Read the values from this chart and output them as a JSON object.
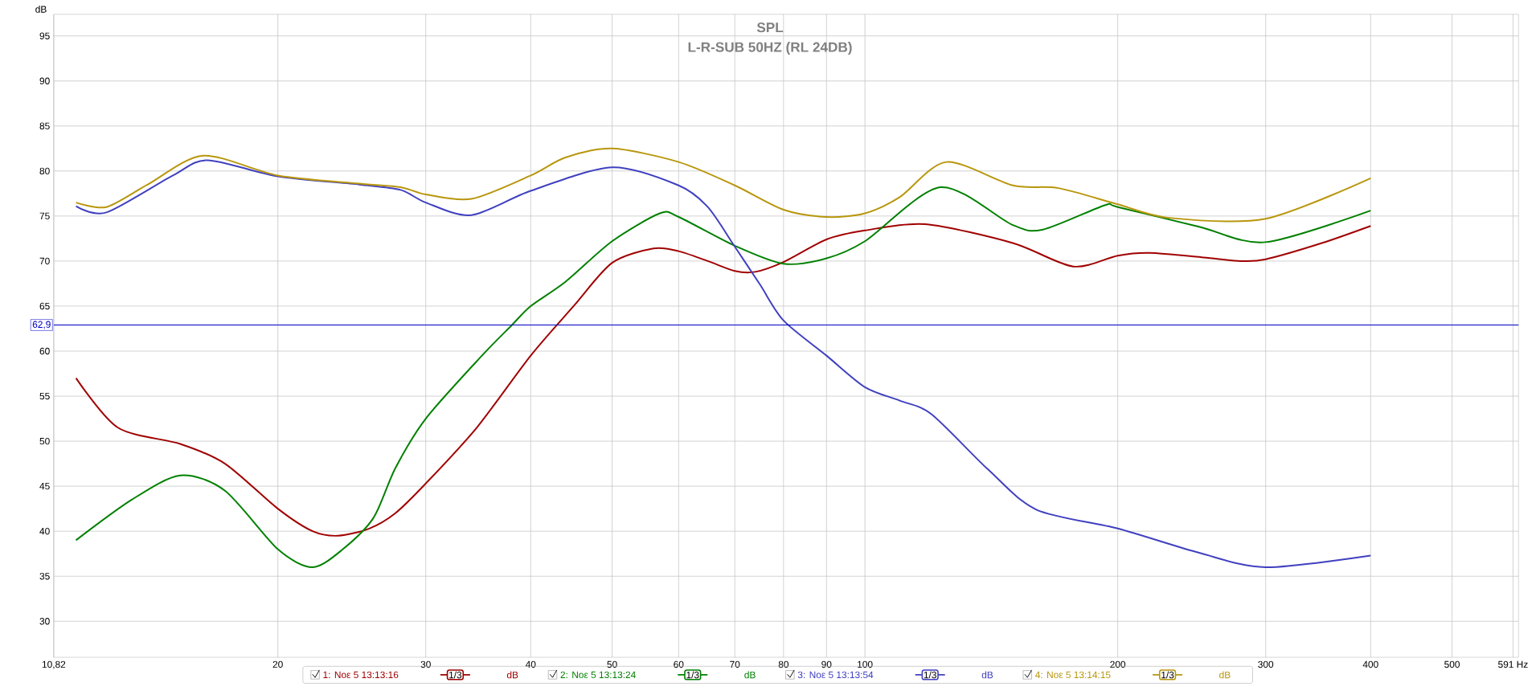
{
  "chart_data": {
    "type": "line",
    "title": "SPL",
    "subtitle": "L-R-SUB 50HZ (RL 24DB)",
    "ylabel": "dB",
    "xlim": [
      10.82,
      600
    ],
    "ylim": [
      26,
      97.4
    ],
    "log": "x",
    "grid": true,
    "legend": "bottom",
    "xticks": [
      {
        "value": 10.82,
        "label": "10,82"
      },
      20,
      30,
      40,
      50,
      60,
      70,
      80,
      90,
      100,
      200,
      300,
      400,
      500,
      {
        "value": 591,
        "label": "591 Hz"
      }
    ],
    "yticks": [
      30,
      35,
      40,
      45,
      50,
      55,
      60,
      65,
      70,
      75,
      80,
      85,
      90,
      95
    ],
    "ref_lines": [
      {
        "axis": "y",
        "value": 62.9,
        "label": "62,9",
        "color": "#0000c8"
      }
    ],
    "annotations": [
      "1/3",
      "dB"
    ],
    "series": [
      {
        "name": "1: Noε 5 13:13:16",
        "color": "#a00000",
        "x": [
          11.5,
          12.9,
          15.3,
          17.3,
          20,
          22,
          23.6,
          25.7,
          27.6,
          30,
          34.5,
          40,
          45,
          50,
          56,
          60,
          65,
          70,
          74,
          80,
          90,
          100,
          118,
          150,
          177,
          200,
          218,
          253,
          280,
          300,
          350,
          400
        ],
        "values": [
          57,
          51.5,
          49.7,
          47.5,
          42.5,
          40,
          39.5,
          40.3,
          42,
          45.3,
          51.5,
          59.5,
          65,
          69.8,
          71.4,
          71.1,
          70,
          68.9,
          68.8,
          69.9,
          72.4,
          73.4,
          74.1,
          72,
          69.4,
          70.6,
          70.9,
          70.4,
          70,
          70.2,
          72,
          73.9
        ]
      },
      {
        "name": "2: Noε 5 13:13:24",
        "color": "#008000",
        "x": [
          11.5,
          13.4,
          15.3,
          17.3,
          20,
          22,
          23.9,
          26,
          27.6,
          30,
          35,
          38,
          40,
          44,
          50,
          57,
          60,
          70,
          80,
          90,
          100,
          123,
          150,
          163,
          193,
          200,
          250,
          300,
          400
        ],
        "values": [
          39,
          43.5,
          46.2,
          44.5,
          38,
          36,
          38,
          41.5,
          47,
          52.5,
          59.5,
          62.9,
          65,
          67.7,
          72.2,
          75.3,
          74.9,
          71.7,
          69.7,
          70.3,
          72.2,
          78.2,
          74,
          73.5,
          76.2,
          76,
          73.8,
          72.1,
          75.6
        ]
      },
      {
        "name": "3: Noε 5 13:13:54",
        "color": "#4040c0",
        "x": [
          11.5,
          12.5,
          15,
          16.5,
          20,
          25,
          28,
          30,
          34,
          40,
          50,
          60,
          65,
          70,
          75,
          80,
          90,
          100,
          110,
          120,
          140,
          160,
          200,
          250,
          300,
          400
        ],
        "values": [
          76.1,
          75.4,
          79.5,
          81.2,
          79.4,
          78.5,
          77.9,
          76.5,
          75.1,
          77.8,
          80.4,
          78.4,
          76,
          71.6,
          67.4,
          63.4,
          59.5,
          56,
          54.5,
          53,
          46.9,
          42.4,
          40.3,
          37.6,
          36,
          37.3
        ]
      },
      {
        "name": "4: Noε 5 13:14:15",
        "color": "#b8960c",
        "x": [
          11.5,
          12.5,
          14,
          16.3,
          20,
          25,
          28,
          30,
          34,
          40,
          44,
          50,
          60,
          70,
          80,
          90,
          100,
          110,
          125,
          150,
          170,
          200,
          230,
          300,
          400
        ],
        "values": [
          76.5,
          76,
          78.5,
          81.7,
          79.5,
          78.6,
          78.2,
          77.4,
          76.9,
          79.5,
          81.5,
          82.5,
          81,
          78.4,
          75.7,
          74.9,
          75.3,
          77.1,
          81,
          78.4,
          78.1,
          76.3,
          74.8,
          74.7,
          79.2
        ]
      }
    ]
  }
}
